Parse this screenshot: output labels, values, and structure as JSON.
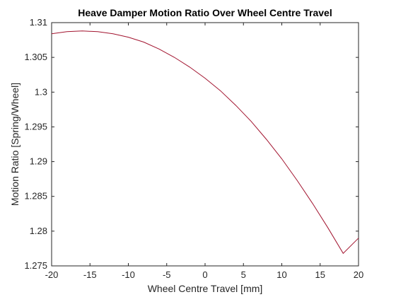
{
  "chart_data": {
    "type": "line",
    "title": "Heave Damper Motion Ratio Over Wheel Centre Travel",
    "xlabel": "Wheel Centre Travel [mm]",
    "ylabel": "Motion Ratio [Spring/Wheel]",
    "xlim": [
      -20,
      20
    ],
    "ylim": [
      1.275,
      1.31
    ],
    "xticks": [
      "-20",
      "-15",
      "-10",
      "-5",
      "0",
      "5",
      "10",
      "15",
      "20"
    ],
    "yticks": [
      "1.275",
      "1.28",
      "1.285",
      "1.29",
      "1.295",
      "1.3",
      "1.305",
      "1.31"
    ],
    "grid": false,
    "series": [
      {
        "name": "Motion Ratio",
        "color": "#a2142f",
        "x": [
          -20,
          -18,
          -16,
          -14,
          -12,
          -10,
          -8,
          -6,
          -4,
          -2,
          0,
          2,
          4,
          6,
          8,
          10,
          12,
          14,
          16,
          18,
          20
        ],
        "y": [
          1.3084,
          1.3087,
          1.3088,
          1.3087,
          1.3084,
          1.3079,
          1.3072,
          1.3062,
          1.305,
          1.3036,
          1.302,
          1.3002,
          1.2981,
          1.2958,
          1.2932,
          1.2904,
          1.2873,
          1.284,
          1.2805,
          1.2768,
          1.279
        ]
      }
    ]
  }
}
